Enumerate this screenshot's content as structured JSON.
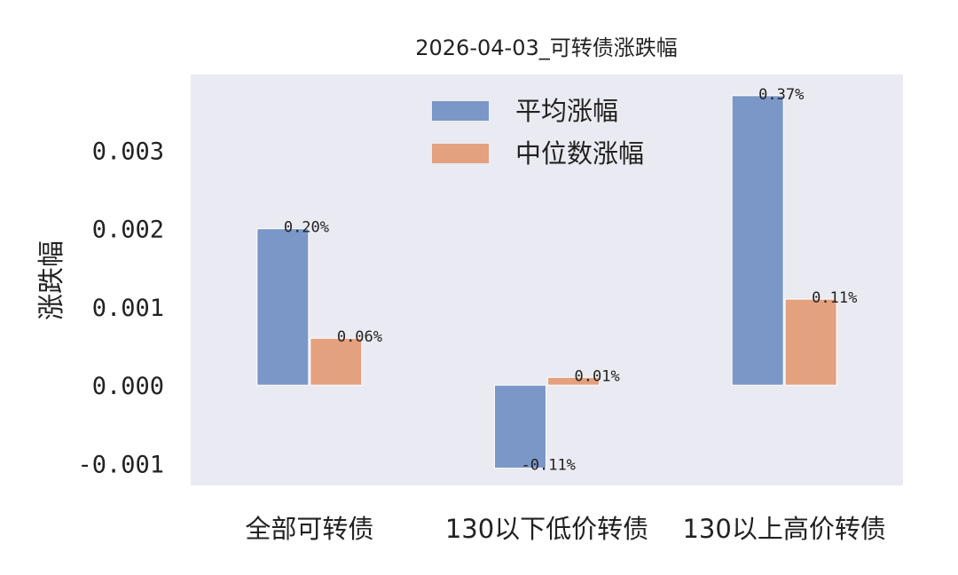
{
  "chart_data": {
    "type": "bar",
    "title": "2026-04-03_可转债涨跌幅",
    "xlabel": "",
    "ylabel": "涨跌幅",
    "categories": [
      "全部可转债",
      "130以下低价转债",
      "130以上高价转债"
    ],
    "series": [
      {
        "name": "平均涨幅",
        "color": "#7b97c7",
        "values": [
          0.002,
          -0.00106,
          0.0037
        ],
        "labels": [
          "0.20%",
          "-0.11%",
          "0.37%"
        ]
      },
      {
        "name": "中位数涨幅",
        "color": "#e3a17f",
        "values": [
          0.0006,
          0.0001,
          0.0011
        ],
        "labels": [
          "0.06%",
          "0.01%",
          "0.11%"
        ]
      }
    ],
    "yticks": [
      "-0.001",
      "0.000",
      "0.001",
      "0.002",
      "0.003"
    ],
    "ytick_values": [
      -0.001,
      0.0,
      0.001,
      0.002,
      0.003
    ],
    "ylim": [
      -0.00128,
      0.00397
    ],
    "grid": false,
    "legend_position": "top-center",
    "plot_background": "#eaeaf2"
  }
}
